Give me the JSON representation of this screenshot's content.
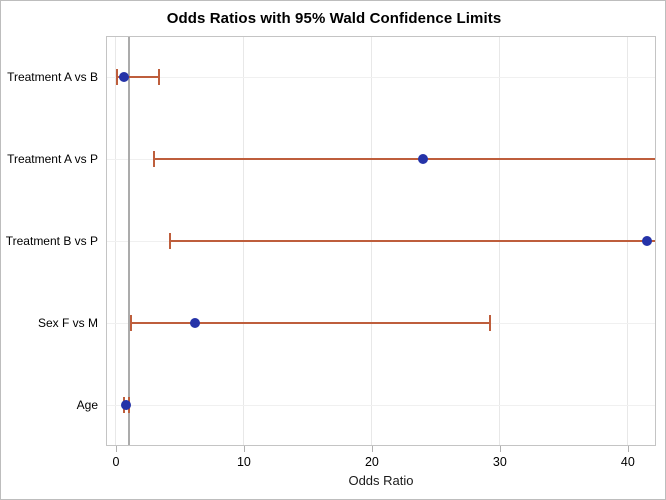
{
  "title": "Odds Ratios with 95% Wald Confidence Limits",
  "chart_data": {
    "type": "scatter",
    "subtype": "forest-plot-horizontal-error-bars",
    "title": "Odds Ratios with 95% Wald Confidence Limits",
    "xlabel": "Odds Ratio",
    "ylabel": "",
    "xlim": [
      -0.78,
      42.2
    ],
    "xticks": [
      0,
      10,
      20,
      30,
      40
    ],
    "grid": true,
    "legend_position": "none",
    "reference_line_x": 1,
    "categories": [
      "Treatment A vs B",
      "Treatment A vs P",
      "Treatment B vs P",
      "Sex F vs M",
      "Age"
    ],
    "points": [
      {
        "label": "Treatment A vs B",
        "odds_ratio": 0.6,
        "lower": 0.1,
        "upper": 3.4,
        "upper_clipped": false
      },
      {
        "label": "Treatment A vs P",
        "odds_ratio": 24.0,
        "lower": 3.0,
        "upper": null,
        "upper_clipped": true
      },
      {
        "label": "Treatment B vs P",
        "odds_ratio": 41.5,
        "lower": 4.2,
        "upper": null,
        "upper_clipped": true
      },
      {
        "label": "Sex F vs M",
        "odds_ratio": 6.2,
        "lower": 1.2,
        "upper": 29.2,
        "upper_clipped": false
      },
      {
        "label": "Age",
        "odds_ratio": 0.8,
        "lower": 0.6,
        "upper": 1.0,
        "upper_clipped": false
      }
    ]
  },
  "colors": {
    "marker": "#2533a8",
    "error_bar": "#be5e3c",
    "reference_line": "#ababab",
    "vertical_gridline": "#e8e8e8",
    "horizontal_gridline": "#f0f0f0",
    "wall_border": "#c4c4c4",
    "tick": "#b0b0b0",
    "text": "#000000"
  }
}
